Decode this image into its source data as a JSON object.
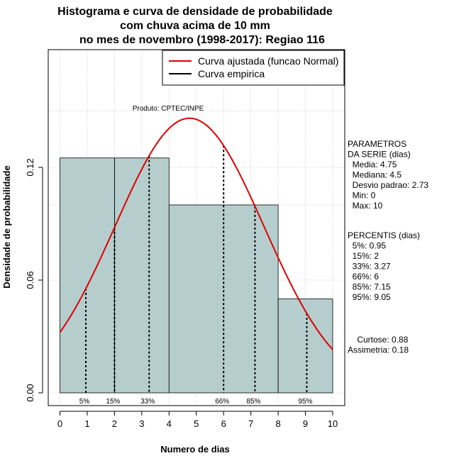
{
  "chart_data": {
    "type": "bar",
    "title": [
      "Histograma e curva de densidade de probabilidade",
      "com chuva acima de 10 mm",
      "no mes de novembro (1998-2017): Regiao 116"
    ],
    "xlabel": "Numero de dias",
    "ylabel": "Densidade de probabilidade",
    "xlim": [
      -0.4,
      10.4
    ],
    "ylim": [
      0,
      0.18
    ],
    "x_ticks": [
      0,
      1,
      2,
      3,
      4,
      5,
      6,
      7,
      8,
      9,
      10
    ],
    "y_ticks": [
      0.0,
      0.06,
      0.12
    ],
    "y_tick_labels": [
      "0.00",
      "0.06",
      "0.12"
    ],
    "grid": true,
    "bins": [
      {
        "start": 0,
        "end": 2,
        "density": 0.125
      },
      {
        "start": 2,
        "end": 4,
        "density": 0.125
      },
      {
        "start": 4,
        "end": 8,
        "density": 0.1
      },
      {
        "start": 8,
        "end": 10,
        "density": 0.05
      }
    ],
    "bin_edges": [
      0,
      2,
      4,
      8,
      10
    ],
    "bar_color": "#b6cdcd",
    "curve": {
      "name": "Curva ajustada (funcao Normal)",
      "mean": 4.75,
      "sd": 2.73,
      "color": "#dd0000"
    },
    "empirical": {
      "name": "Curva empirica",
      "color": "#000000"
    },
    "legend_position": "top-right",
    "annotation": "Produto: CPTEC/INPE",
    "percentile_lines": [
      {
        "x": 0.95,
        "label": "5%"
      },
      {
        "x": 2,
        "label": "15%"
      },
      {
        "x": 3.27,
        "label": "33%"
      },
      {
        "x": 6,
        "label": "66%"
      },
      {
        "x": 7.15,
        "label": "85%"
      },
      {
        "x": 9.05,
        "label": "95%"
      }
    ]
  },
  "side_panel": {
    "parametros": [
      "PARAMETROS",
      "DA SERIE (dias)",
      "  Media: 4.75",
      "  Mediana: 4.5",
      "  Desvio padrao: 2.73",
      "  Min: 0",
      "  Max: 10"
    ],
    "percentis": [
      "PERCENTIS (dias)",
      "  5%: 0.95",
      "  15%: 2",
      "  33%: 3.27",
      "  66%: 6",
      "  85%: 7.15",
      "  95%: 9.05"
    ],
    "momentos": [
      "    Curtose: 0.88",
      "Assimetria: 0.18"
    ]
  }
}
